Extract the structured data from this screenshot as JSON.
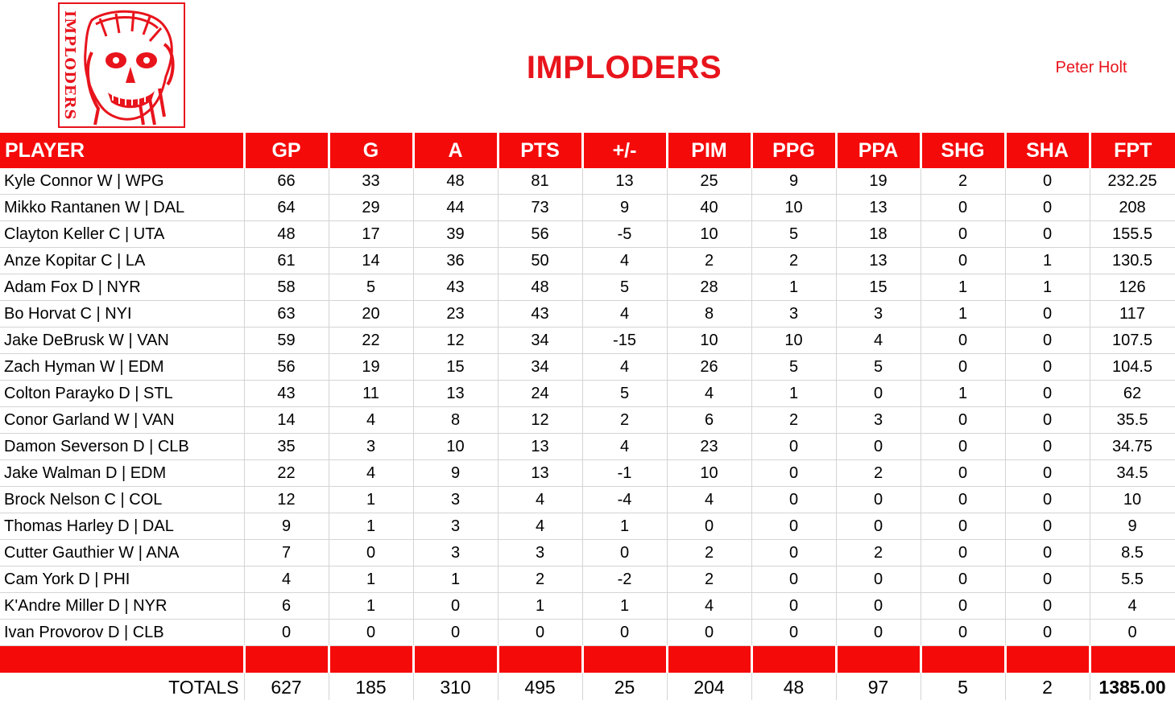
{
  "header": {
    "logo_text": "IMPLODERS",
    "title": "IMPLODERS",
    "owner": "Peter Holt"
  },
  "colors": {
    "accent": "#f50a0a",
    "title": "#e8141c"
  },
  "table": {
    "columns": [
      "PLAYER",
      "GP",
      "G",
      "A",
      "PTS",
      "+/-",
      "PIM",
      "PPG",
      "PPA",
      "SHG",
      "SHA",
      "FPT"
    ],
    "rows": [
      [
        "Kyle Connor W | WPG",
        "66",
        "33",
        "48",
        "81",
        "13",
        "25",
        "9",
        "19",
        "2",
        "0",
        "232.25"
      ],
      [
        "Mikko Rantanen W | DAL",
        "64",
        "29",
        "44",
        "73",
        "9",
        "40",
        "10",
        "13",
        "0",
        "0",
        "208"
      ],
      [
        "Clayton Keller C | UTA",
        "48",
        "17",
        "39",
        "56",
        "-5",
        "10",
        "5",
        "18",
        "0",
        "0",
        "155.5"
      ],
      [
        "Anze Kopitar C | LA",
        "61",
        "14",
        "36",
        "50",
        "4",
        "2",
        "2",
        "13",
        "0",
        "1",
        "130.5"
      ],
      [
        "Adam Fox D | NYR",
        "58",
        "5",
        "43",
        "48",
        "5",
        "28",
        "1",
        "15",
        "1",
        "1",
        "126"
      ],
      [
        "Bo Horvat C | NYI",
        "63",
        "20",
        "23",
        "43",
        "4",
        "8",
        "3",
        "3",
        "1",
        "0",
        "117"
      ],
      [
        "Jake DeBrusk W | VAN",
        "59",
        "22",
        "12",
        "34",
        "-15",
        "10",
        "10",
        "4",
        "0",
        "0",
        "107.5"
      ],
      [
        "Zach Hyman W | EDM",
        "56",
        "19",
        "15",
        "34",
        "4",
        "26",
        "5",
        "5",
        "0",
        "0",
        "104.5"
      ],
      [
        "Colton Parayko D | STL",
        "43",
        "11",
        "13",
        "24",
        "5",
        "4",
        "1",
        "0",
        "1",
        "0",
        "62"
      ],
      [
        "Conor Garland W | VAN",
        "14",
        "4",
        "8",
        "12",
        "2",
        "6",
        "2",
        "3",
        "0",
        "0",
        "35.5"
      ],
      [
        "Damon Severson D | CLB",
        "35",
        "3",
        "10",
        "13",
        "4",
        "23",
        "0",
        "0",
        "0",
        "0",
        "34.75"
      ],
      [
        "Jake Walman D | EDM",
        "22",
        "4",
        "9",
        "13",
        "-1",
        "10",
        "0",
        "2",
        "0",
        "0",
        "34.5"
      ],
      [
        "Brock Nelson C | COL",
        "12",
        "1",
        "3",
        "4",
        "-4",
        "4",
        "0",
        "0",
        "0",
        "0",
        "10"
      ],
      [
        "Thomas Harley D | DAL",
        "9",
        "1",
        "3",
        "4",
        "1",
        "0",
        "0",
        "0",
        "0",
        "0",
        "9"
      ],
      [
        "Cutter Gauthier W | ANA",
        "7",
        "0",
        "3",
        "3",
        "0",
        "2",
        "0",
        "2",
        "0",
        "0",
        "8.5"
      ],
      [
        "Cam York D | PHI",
        "4",
        "1",
        "1",
        "2",
        "-2",
        "2",
        "0",
        "0",
        "0",
        "0",
        "5.5"
      ],
      [
        "K'Andre Miller D | NYR",
        "6",
        "1",
        "0",
        "1",
        "1",
        "4",
        "0",
        "0",
        "0",
        "0",
        "4"
      ],
      [
        "Ivan Provorov D | CLB",
        "0",
        "0",
        "0",
        "0",
        "0",
        "0",
        "0",
        "0",
        "0",
        "0",
        "0"
      ]
    ],
    "totals": [
      "TOTALS",
      "627",
      "185",
      "310",
      "495",
      "25",
      "204",
      "48",
      "97",
      "5",
      "2",
      "1385.00"
    ]
  }
}
